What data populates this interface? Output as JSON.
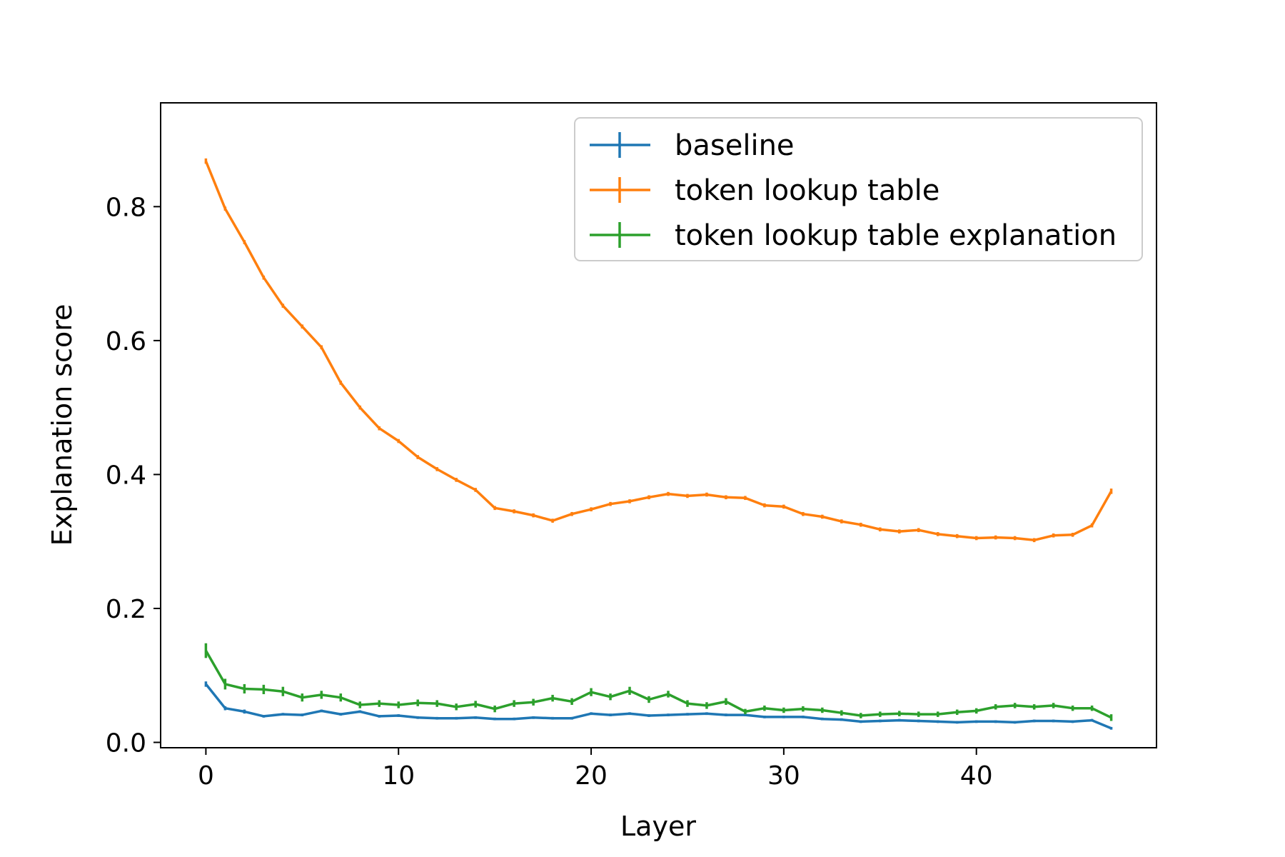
{
  "chart_data": {
    "type": "line",
    "title": "",
    "xlabel": "Layer",
    "ylabel": "Explanation score",
    "xlim": [
      -2.35,
      49.35
    ],
    "ylim": [
      -0.008,
      0.955
    ],
    "xticks": [
      0,
      10,
      20,
      30,
      40
    ],
    "xtick_labels": [
      "0",
      "10",
      "20",
      "30",
      "40"
    ],
    "yticks": [
      0.0,
      0.2,
      0.4,
      0.6,
      0.8
    ],
    "ytick_labels": [
      "0.0",
      "0.2",
      "0.4",
      "0.6",
      "0.8"
    ],
    "grid": false,
    "legend_position": "top-right",
    "x": [
      0,
      1,
      2,
      3,
      4,
      5,
      6,
      7,
      8,
      9,
      10,
      11,
      12,
      13,
      14,
      15,
      16,
      17,
      18,
      19,
      20,
      21,
      22,
      23,
      24,
      25,
      26,
      27,
      28,
      29,
      30,
      31,
      32,
      33,
      34,
      35,
      36,
      37,
      38,
      39,
      40,
      41,
      42,
      43,
      44,
      45,
      46,
      47
    ],
    "series": [
      {
        "name": "baseline",
        "color": "#1f77b4",
        "values": [
          0.087,
          0.051,
          0.046,
          0.039,
          0.042,
          0.041,
          0.047,
          0.042,
          0.046,
          0.039,
          0.04,
          0.037,
          0.036,
          0.036,
          0.037,
          0.035,
          0.035,
          0.037,
          0.036,
          0.036,
          0.043,
          0.041,
          0.043,
          0.04,
          0.041,
          0.042,
          0.043,
          0.041,
          0.041,
          0.038,
          0.038,
          0.038,
          0.035,
          0.034,
          0.031,
          0.032,
          0.033,
          0.032,
          0.031,
          0.03,
          0.031,
          0.031,
          0.03,
          0.032,
          0.032,
          0.031,
          0.033,
          0.021
        ],
        "errors": [
          0.004,
          0.003,
          0.003,
          0.002,
          0.002,
          0.002,
          0.002,
          0.002,
          0.002,
          0.002,
          0.002,
          0.002,
          0.002,
          0.002,
          0.002,
          0.002,
          0.002,
          0.002,
          0.002,
          0.002,
          0.002,
          0.002,
          0.002,
          0.002,
          0.002,
          0.002,
          0.002,
          0.002,
          0.002,
          0.002,
          0.002,
          0.002,
          0.002,
          0.002,
          0.002,
          0.002,
          0.002,
          0.002,
          0.002,
          0.002,
          0.002,
          0.002,
          0.002,
          0.002,
          0.002,
          0.002,
          0.002,
          0.002
        ]
      },
      {
        "name": "token lookup table",
        "color": "#ff7f0e",
        "values": [
          0.868,
          0.797,
          0.747,
          0.694,
          0.652,
          0.621,
          0.59,
          0.537,
          0.5,
          0.469,
          0.45,
          0.426,
          0.408,
          0.392,
          0.377,
          0.35,
          0.345,
          0.339,
          0.331,
          0.341,
          0.348,
          0.356,
          0.36,
          0.366,
          0.371,
          0.368,
          0.37,
          0.366,
          0.365,
          0.354,
          0.352,
          0.341,
          0.337,
          0.33,
          0.325,
          0.318,
          0.315,
          0.317,
          0.311,
          0.308,
          0.305,
          0.306,
          0.305,
          0.302,
          0.309,
          0.31,
          0.324,
          0.375
        ],
        "errors": [
          0.004,
          0.003,
          0.003,
          0.003,
          0.003,
          0.003,
          0.003,
          0.003,
          0.003,
          0.003,
          0.003,
          0.003,
          0.003,
          0.003,
          0.003,
          0.003,
          0.003,
          0.003,
          0.003,
          0.003,
          0.003,
          0.003,
          0.003,
          0.003,
          0.003,
          0.003,
          0.003,
          0.003,
          0.003,
          0.003,
          0.003,
          0.003,
          0.003,
          0.003,
          0.003,
          0.003,
          0.003,
          0.003,
          0.003,
          0.003,
          0.003,
          0.003,
          0.003,
          0.003,
          0.003,
          0.003,
          0.003,
          0.004
        ]
      },
      {
        "name": "token lookup table explanation",
        "color": "#2ca02c",
        "values": [
          0.137,
          0.087,
          0.08,
          0.079,
          0.076,
          0.067,
          0.071,
          0.067,
          0.056,
          0.058,
          0.056,
          0.059,
          0.058,
          0.053,
          0.057,
          0.05,
          0.058,
          0.06,
          0.066,
          0.061,
          0.075,
          0.068,
          0.077,
          0.064,
          0.072,
          0.058,
          0.055,
          0.061,
          0.046,
          0.051,
          0.048,
          0.05,
          0.048,
          0.044,
          0.04,
          0.042,
          0.043,
          0.042,
          0.042,
          0.045,
          0.047,
          0.053,
          0.055,
          0.053,
          0.055,
          0.051,
          0.051,
          0.037
        ],
        "errors": [
          0.011,
          0.008,
          0.007,
          0.007,
          0.007,
          0.006,
          0.006,
          0.006,
          0.005,
          0.005,
          0.005,
          0.005,
          0.005,
          0.005,
          0.005,
          0.005,
          0.005,
          0.005,
          0.005,
          0.005,
          0.006,
          0.005,
          0.006,
          0.005,
          0.005,
          0.005,
          0.005,
          0.005,
          0.004,
          0.004,
          0.004,
          0.004,
          0.004,
          0.004,
          0.004,
          0.004,
          0.004,
          0.004,
          0.004,
          0.004,
          0.004,
          0.004,
          0.004,
          0.004,
          0.004,
          0.004,
          0.004,
          0.005
        ]
      }
    ]
  }
}
